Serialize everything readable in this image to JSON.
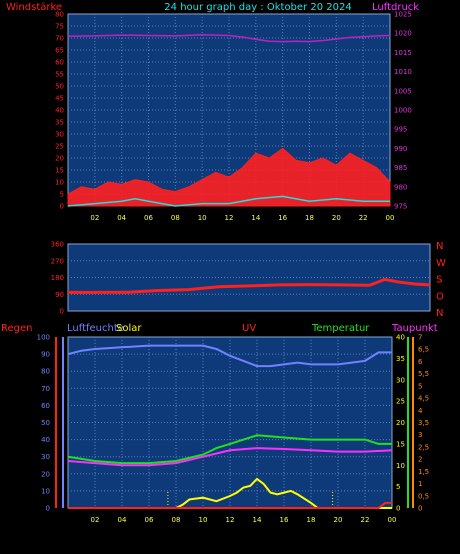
{
  "header": {
    "left_label": "Windstärke",
    "title": "24 hour graph day : Oktober 20 2024",
    "right_label": "Luftdruck"
  },
  "colors": {
    "background": "#000000",
    "plot_background": "#0e3a7a",
    "grid": "#5b7fb5",
    "wind_axis": "#ff2020",
    "pressure_axis": "#e030e0",
    "title": "#20e0e0",
    "time_axis": "#ffff40",
    "rain": "#ff2020",
    "humidity": "#6f82ff",
    "solar": "#ffff00",
    "uv": "#ff2020",
    "temperature": "#20e020",
    "dewpoint": "#ff30ff",
    "temp_axis": "#ffff00",
    "uv_axis": "#ff8c00"
  },
  "chart_data": [
    {
      "type": "line",
      "id": "wind-pressure",
      "x_ticks": [
        "02",
        "04",
        "06",
        "08",
        "10",
        "12",
        "14",
        "16",
        "18",
        "20",
        "22",
        "00"
      ],
      "wind_axis": {
        "label": "Windstärke",
        "range": [
          0,
          80
        ],
        "ticks": [
          0,
          5,
          10,
          15,
          20,
          25,
          30,
          35,
          40,
          45,
          50,
          55,
          60,
          65,
          70,
          75,
          80
        ]
      },
      "pressure_axis": {
        "label": "Luftdruck",
        "range": [
          975,
          1025
        ],
        "ticks": [
          975,
          980,
          985,
          990,
          995,
          1000,
          1005,
          1010,
          1015,
          1020,
          1025
        ]
      },
      "series": [
        {
          "role": "pressure",
          "axis": "right",
          "color": "#c020c0",
          "x": [
            0,
            2,
            4,
            6,
            8,
            10,
            12,
            13,
            14,
            15,
            16,
            17,
            18,
            19,
            20,
            21,
            22,
            23,
            24
          ],
          "y": [
            1019.2,
            1019.3,
            1019.5,
            1019.4,
            1019.3,
            1019.6,
            1019.4,
            1019.0,
            1018.4,
            1017.9,
            1017.8,
            1017.9,
            1017.8,
            1018.1,
            1018.5,
            1018.9,
            1019.1,
            1019.3,
            1019.4
          ]
        },
        {
          "role": "gust",
          "axis": "left",
          "color": "#ff2020",
          "style": "filled",
          "x": [
            0,
            1,
            2,
            3,
            4,
            5,
            6,
            7,
            8,
            9,
            10,
            11,
            12,
            13,
            14,
            15,
            16,
            17,
            18,
            19,
            20,
            21,
            22,
            23,
            24
          ],
          "y": [
            5,
            8,
            7,
            10,
            9,
            11,
            10,
            7,
            6,
            8,
            11,
            14,
            12,
            16,
            22,
            20,
            24,
            19,
            18,
            20,
            17,
            22,
            19,
            16,
            10
          ]
        },
        {
          "role": "average",
          "axis": "left",
          "color": "#20e0e0",
          "x": [
            0,
            2,
            4,
            5,
            6,
            8,
            10,
            12,
            14,
            16,
            18,
            20,
            22,
            24
          ],
          "y": [
            0,
            1,
            2,
            3,
            2,
            0,
            1,
            1,
            3,
            4,
            2,
            3,
            2,
            2
          ]
        }
      ]
    },
    {
      "type": "line",
      "id": "wind-direction",
      "left_axis": {
        "range": [
          0,
          360
        ],
        "ticks": [
          0,
          90,
          180,
          270,
          360
        ]
      },
      "right_labels": [
        "N",
        "W",
        "S",
        "O",
        "N"
      ],
      "series": [
        {
          "role": "direction",
          "color": "#ff2020",
          "x": [
            0,
            2,
            4,
            6,
            8,
            10,
            12,
            14,
            16,
            18,
            20,
            21,
            22,
            23,
            24
          ],
          "y": [
            100,
            100,
            101,
            110,
            115,
            130,
            135,
            140,
            142,
            140,
            138,
            170,
            155,
            145,
            140
          ]
        }
      ]
    },
    {
      "type": "line",
      "id": "climate",
      "header_labels": [
        "Regen",
        "Luftfeuchte",
        "Solar",
        "UV",
        "Temperatur",
        "Taupunkt"
      ],
      "x_ticks": [
        "02",
        "04",
        "06",
        "08",
        "10",
        "12",
        "14",
        "16",
        "18",
        "20",
        "22",
        "00"
      ],
      "left_axis": {
        "range": [
          0,
          100
        ],
        "ticks": [
          0,
          10,
          20,
          30,
          40,
          50,
          60,
          70,
          80,
          90,
          100
        ]
      },
      "temp_axis": {
        "range": [
          0,
          40
        ],
        "ticks": [
          0,
          5,
          10,
          15,
          20,
          25,
          30,
          35,
          40
        ]
      },
      "uv_axis": {
        "range": [
          0,
          7
        ],
        "ticks": [
          "0",
          "0,5",
          "1",
          "1,5",
          "2",
          "2,5",
          "3",
          "3,5",
          "4",
          "4,5",
          "5",
          "5,5",
          "6",
          "6,5",
          "7"
        ]
      },
      "series": [
        {
          "role": "humidity",
          "color": "#6f82ff",
          "x": [
            0,
            1,
            2,
            4,
            6,
            8,
            10,
            11,
            12,
            13,
            14,
            15,
            16,
            17,
            18,
            19,
            20,
            21,
            22,
            23,
            24
          ],
          "y": [
            90,
            92,
            93,
            94,
            95,
            95,
            95,
            93,
            89,
            86,
            83,
            83,
            84,
            85,
            84,
            84,
            84,
            85,
            86,
            91,
            91
          ]
        },
        {
          "role": "temperature",
          "axis": "temp",
          "color": "#20e020",
          "x": [
            0,
            2,
            4,
            6,
            8,
            10,
            11,
            12,
            13,
            14,
            16,
            18,
            20,
            22,
            23,
            24
          ],
          "y": [
            12,
            11,
            10.5,
            10.5,
            11,
            12.5,
            14,
            15,
            16,
            17,
            16.5,
            16,
            16,
            16,
            15,
            15
          ]
        },
        {
          "role": "dewpoint",
          "axis": "temp",
          "color": "#ff30ff",
          "x": [
            0,
            2,
            4,
            6,
            8,
            10,
            12,
            14,
            16,
            18,
            20,
            22,
            24
          ],
          "y": [
            11,
            10.5,
            10,
            10,
            10.5,
            12,
            13.5,
            14,
            13.8,
            13.5,
            13.2,
            13.2,
            13.5
          ]
        },
        {
          "role": "solar",
          "color": "#ffff00",
          "x": [
            0,
            8,
            8.5,
            9,
            10,
            11,
            12,
            12.5,
            13,
            13.5,
            14,
            14.5,
            15,
            15.5,
            16,
            16.5,
            17,
            18,
            18.5,
            19,
            24
          ],
          "y": [
            0,
            0,
            2,
            5,
            6,
            4,
            7,
            9,
            12,
            13,
            17,
            14,
            9,
            8,
            9,
            10,
            8,
            3,
            0,
            0,
            0
          ]
        },
        {
          "role": "rain",
          "color": "#ff2020",
          "x": [
            0,
            23,
            23.5,
            24
          ],
          "y": [
            0,
            0,
            3,
            3
          ]
        }
      ]
    }
  ]
}
